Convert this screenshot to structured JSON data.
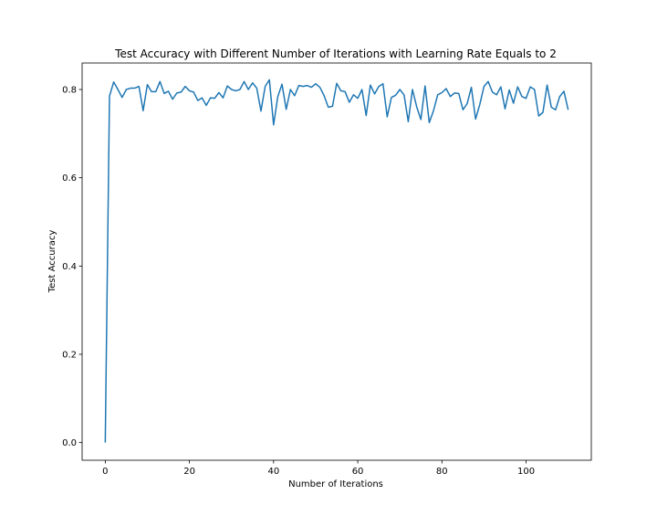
{
  "chart_data": {
    "type": "line",
    "title": "Test Accuracy with Different Number of Iterations with Learning Rate Equals to 2",
    "xlabel": "Number of Iterations",
    "ylabel": "Test Accuracy",
    "xlim": [
      -5.5,
      115.5
    ],
    "ylim": [
      -0.04,
      0.86
    ],
    "xticks": [
      0,
      20,
      40,
      60,
      80,
      100
    ],
    "yticks": [
      0.0,
      0.2,
      0.4,
      0.6,
      0.8
    ],
    "xtick_labels": [
      "0",
      "20",
      "40",
      "60",
      "80",
      "100"
    ],
    "ytick_labels": [
      "0.0",
      "0.2",
      "0.4",
      "0.6",
      "0.8"
    ],
    "grid": false,
    "legend": "none",
    "series": [
      {
        "color": "#1f77b4",
        "x": [
          0,
          1,
          2,
          3,
          4,
          5,
          6,
          7,
          8,
          9,
          10,
          11,
          12,
          13,
          14,
          15,
          16,
          17,
          18,
          19,
          20,
          21,
          22,
          23,
          24,
          25,
          26,
          27,
          28,
          29,
          30,
          31,
          32,
          33,
          34,
          35,
          36,
          37,
          38,
          39,
          40,
          41,
          42,
          43,
          44,
          45,
          46,
          47,
          48,
          49,
          50,
          51,
          52,
          53,
          54,
          55,
          56,
          57,
          58,
          59,
          60,
          61,
          62,
          63,
          64,
          65,
          66,
          67,
          68,
          69,
          70,
          71,
          72,
          73,
          74,
          75,
          76,
          77,
          78,
          79,
          80,
          81,
          82,
          83,
          84,
          85,
          86,
          87,
          88,
          89,
          90,
          91,
          92,
          93,
          94,
          95,
          96,
          97,
          98,
          99,
          100,
          101,
          102,
          103,
          104,
          105,
          106,
          107,
          108,
          109,
          110
        ],
        "values": [
          0.0,
          0.785,
          0.817,
          0.8,
          0.782,
          0.8,
          0.803,
          0.803,
          0.807,
          0.752,
          0.811,
          0.795,
          0.795,
          0.818,
          0.791,
          0.796,
          0.778,
          0.792,
          0.794,
          0.807,
          0.797,
          0.794,
          0.775,
          0.781,
          0.764,
          0.781,
          0.78,
          0.793,
          0.781,
          0.808,
          0.8,
          0.797,
          0.8,
          0.818,
          0.8,
          0.815,
          0.803,
          0.751,
          0.807,
          0.822,
          0.72,
          0.784,
          0.812,
          0.755,
          0.8,
          0.786,
          0.809,
          0.807,
          0.809,
          0.805,
          0.813,
          0.805,
          0.786,
          0.76,
          0.762,
          0.814,
          0.797,
          0.795,
          0.771,
          0.788,
          0.78,
          0.8,
          0.741,
          0.81,
          0.79,
          0.807,
          0.813,
          0.738,
          0.782,
          0.787,
          0.8,
          0.788,
          0.727,
          0.8,
          0.761,
          0.732,
          0.808,
          0.725,
          0.752,
          0.788,
          0.793,
          0.802,
          0.784,
          0.792,
          0.791,
          0.754,
          0.768,
          0.805,
          0.733,
          0.766,
          0.807,
          0.818,
          0.794,
          0.788,
          0.806,
          0.756,
          0.799,
          0.769,
          0.806,
          0.784,
          0.78,
          0.806,
          0.8,
          0.74,
          0.748,
          0.81,
          0.76,
          0.754,
          0.784,
          0.796,
          0.754
        ]
      }
    ]
  }
}
